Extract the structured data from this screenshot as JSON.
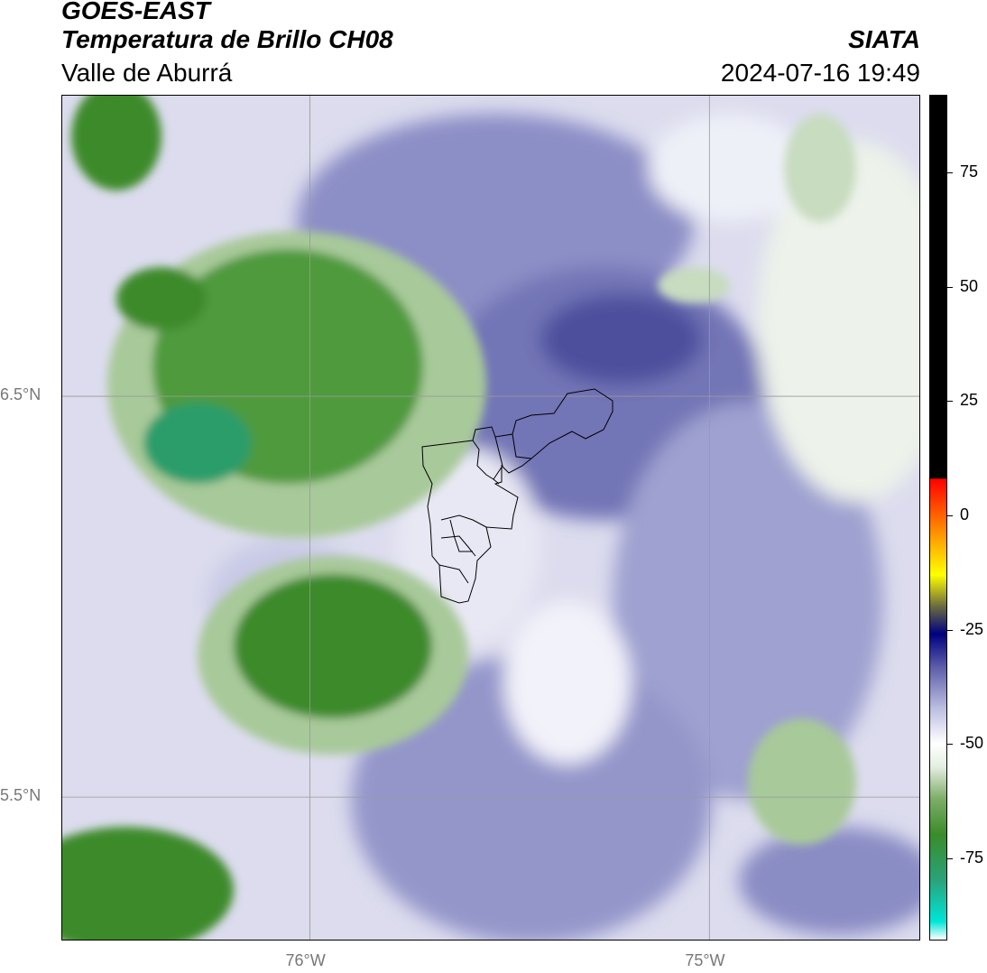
{
  "header": {
    "satellite": "GOES-EAST",
    "product": "Temperatura de Brillo CH08",
    "region": "Valle de Aburrá",
    "brand": "SIATA",
    "datetime": "2024-07-16 19:49"
  },
  "map": {
    "lat_ticks": [
      {
        "value": 6.5,
        "label": "6.5°N"
      },
      {
        "value": 5.5,
        "label": "5.5°N"
      }
    ],
    "lon_ticks": [
      {
        "value": -76.0,
        "label": "76°W"
      },
      {
        "value": -75.0,
        "label": "75°W"
      }
    ],
    "extent": {
      "lon_min": -76.62,
      "lon_max": -74.47,
      "lat_min": 5.14,
      "lat_max": 7.25
    }
  },
  "colorbar": {
    "ticks": [
      {
        "value": 75,
        "label": "75"
      },
      {
        "value": 50,
        "label": "50"
      },
      {
        "value": 25,
        "label": "25"
      },
      {
        "value": 0,
        "label": "0"
      },
      {
        "value": -25,
        "label": "-25"
      },
      {
        "value": -50,
        "label": "-50"
      },
      {
        "value": -75,
        "label": "-75"
      }
    ],
    "range": [
      -93,
      92
    ],
    "stops": [
      {
        "value": -93,
        "color": "#ffffff"
      },
      {
        "value": -89,
        "color": "#00e5d6"
      },
      {
        "value": -80,
        "color": "#2aa37a"
      },
      {
        "value": -70,
        "color": "#3a8c2a"
      },
      {
        "value": -62,
        "color": "#7fae6a"
      },
      {
        "value": -55,
        "color": "#e6efe2"
      },
      {
        "value": -50,
        "color": "#ffffff"
      },
      {
        "value": -42,
        "color": "#b9bbe0"
      },
      {
        "value": -33,
        "color": "#5a5aa8"
      },
      {
        "value": -26,
        "color": "#000080"
      },
      {
        "value": -20,
        "color": "#6a6a40"
      },
      {
        "value": -13,
        "color": "#ffff00"
      },
      {
        "value": -5,
        "color": "#ffa000"
      },
      {
        "value": 8,
        "color": "#ff0000"
      },
      {
        "value": 8.1,
        "color": "#000000"
      },
      {
        "value": 92,
        "color": "#000000"
      }
    ]
  },
  "palette": {
    "green_dark": "#3d8a2c",
    "green_mid": "#6fa860",
    "green_light": "#dde9d8",
    "teal": "#2a9d6a",
    "purple_dark": "#4e4f9d",
    "purple_mid": "#8c8ec6",
    "purple_light": "#c9cae6",
    "white": "#ffffff"
  }
}
